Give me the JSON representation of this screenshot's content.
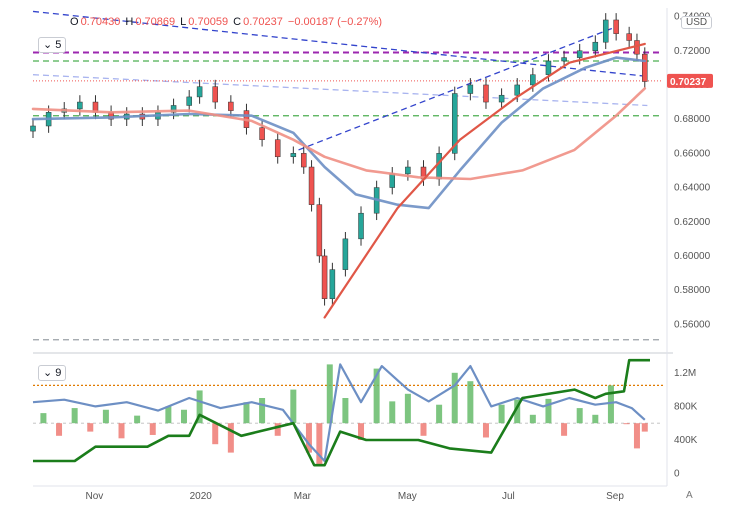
{
  "header": {
    "ohlc": [
      {
        "label": "O",
        "value": "0.70430"
      },
      {
        "label": "H",
        "value": "0.70869"
      },
      {
        "label": "L",
        "value": "0.70059"
      },
      {
        "label": "C",
        "value": "0.70237"
      }
    ],
    "change": "−0.00187 (−0.27%)",
    "currency": "USD",
    "price_pane_legend": "5",
    "volume_pane_legend": "9",
    "scale_mode": "A"
  },
  "colors": {
    "up": "#26a69a",
    "down": "#ef5350",
    "sma_fast": "#6d8fc4",
    "sma_slow": "#f08f84",
    "trend_red": "#e05747",
    "purple": "#9c27b0",
    "green_dash": "#4caf50",
    "blue_dash": "#3344cc",
    "green_line": "#1b7d1b",
    "orange_dot": "#e07a00"
  },
  "chart_data": [
    {
      "type": "line",
      "pane": "price",
      "ylim": [
        0.545,
        0.745
      ],
      "y_ticks": [
        0.74,
        0.72,
        0.7,
        0.68,
        0.66,
        0.64,
        0.62,
        0.6,
        0.58,
        0.56
      ],
      "y_tick_labels": [
        "0.74000",
        "0.72000",
        "0.70000",
        "0.68000",
        "0.66000",
        "0.64000",
        "0.62000",
        "0.60000",
        "0.58000",
        "0.56000"
      ],
      "last_price_label": "0.70237",
      "last_price": 0.70237,
      "x_months": [
        "Nov",
        "2020",
        "Mar",
        "May",
        "Jul",
        "Sep"
      ],
      "x_month_positions": [
        1.2,
        3.2,
        5.2,
        7.2,
        9.2,
        11.2
      ],
      "candles": [
        {
          "t": 0.0,
          "c": 0.676
        },
        {
          "t": 0.3,
          "c": 0.684
        },
        {
          "t": 0.6,
          "c": 0.686
        },
        {
          "t": 0.9,
          "c": 0.69
        },
        {
          "t": 1.2,
          "c": 0.684
        },
        {
          "t": 1.5,
          "c": 0.68
        },
        {
          "t": 1.8,
          "c": 0.683
        },
        {
          "t": 2.1,
          "c": 0.68
        },
        {
          "t": 2.4,
          "c": 0.684
        },
        {
          "t": 2.7,
          "c": 0.688
        },
        {
          "t": 3.0,
          "c": 0.693
        },
        {
          "t": 3.2,
          "c": 0.699
        },
        {
          "t": 3.5,
          "c": 0.69
        },
        {
          "t": 3.8,
          "c": 0.685
        },
        {
          "t": 4.1,
          "c": 0.675
        },
        {
          "t": 4.4,
          "c": 0.668
        },
        {
          "t": 4.7,
          "c": 0.658
        },
        {
          "t": 5.0,
          "c": 0.66
        },
        {
          "t": 5.2,
          "c": 0.652
        },
        {
          "t": 5.35,
          "c": 0.63
        },
        {
          "t": 5.5,
          "c": 0.6
        },
        {
          "t": 5.6,
          "c": 0.575
        },
        {
          "t": 5.75,
          "c": 0.592
        },
        {
          "t": 6.0,
          "c": 0.61
        },
        {
          "t": 6.3,
          "c": 0.625
        },
        {
          "t": 6.6,
          "c": 0.64
        },
        {
          "t": 6.9,
          "c": 0.648
        },
        {
          "t": 7.2,
          "c": 0.652
        },
        {
          "t": 7.5,
          "c": 0.645
        },
        {
          "t": 7.8,
          "c": 0.66
        },
        {
          "t": 8.1,
          "c": 0.695
        },
        {
          "t": 8.4,
          "c": 0.7
        },
        {
          "t": 8.7,
          "c": 0.69
        },
        {
          "t": 9.0,
          "c": 0.694
        },
        {
          "t": 9.3,
          "c": 0.7
        },
        {
          "t": 9.6,
          "c": 0.706
        },
        {
          "t": 9.9,
          "c": 0.714
        },
        {
          "t": 10.2,
          "c": 0.716
        },
        {
          "t": 10.5,
          "c": 0.72
        },
        {
          "t": 10.8,
          "c": 0.725
        },
        {
          "t": 11.0,
          "c": 0.738
        },
        {
          "t": 11.2,
          "c": 0.73
        },
        {
          "t": 11.45,
          "c": 0.726
        },
        {
          "t": 11.6,
          "c": 0.718
        },
        {
          "t": 11.75,
          "c": 0.702
        }
      ],
      "series": [
        {
          "key": "sma_fast",
          "values": [
            [
              0.0,
              0.68
            ],
            [
              1.5,
              0.681
            ],
            [
              3.0,
              0.683
            ],
            [
              4.2,
              0.682
            ],
            [
              5.0,
              0.672
            ],
            [
              5.6,
              0.652
            ],
            [
              6.2,
              0.636
            ],
            [
              7.0,
              0.63
            ],
            [
              7.6,
              0.628
            ],
            [
              8.2,
              0.65
            ],
            [
              9.0,
              0.678
            ],
            [
              9.8,
              0.698
            ],
            [
              10.6,
              0.71
            ],
            [
              11.2,
              0.716
            ],
            [
              11.75,
              0.714
            ]
          ]
        },
        {
          "key": "sma_slow",
          "values": [
            [
              0.0,
              0.686
            ],
            [
              1.5,
              0.684
            ],
            [
              3.0,
              0.685
            ],
            [
              4.2,
              0.679
            ],
            [
              5.0,
              0.668
            ],
            [
              5.6,
              0.658
            ],
            [
              6.4,
              0.65
            ],
            [
              7.4,
              0.646
            ],
            [
              8.4,
              0.645
            ],
            [
              9.4,
              0.65
            ],
            [
              10.4,
              0.662
            ],
            [
              11.2,
              0.682
            ],
            [
              11.75,
              0.698
            ]
          ]
        },
        {
          "key": "trend_red",
          "values": [
            [
              5.6,
              0.564
            ],
            [
              7.0,
              0.628
            ],
            [
              8.2,
              0.668
            ],
            [
              9.3,
              0.693
            ],
            [
              10.3,
              0.713
            ],
            [
              11.75,
              0.724
            ]
          ]
        }
      ],
      "levels": [
        {
          "key": "purple",
          "y": 0.719
        },
        {
          "key": "green_dash",
          "y": 0.714
        },
        {
          "key": "green_dash",
          "y": 0.682
        },
        {
          "key": "gray_dash",
          "y": 0.551
        }
      ],
      "trendlines": [
        {
          "key": "blue_dash",
          "points": [
            [
              0.0,
              0.743
            ],
            [
              11.8,
              0.705
            ]
          ]
        },
        {
          "key": "blue_light",
          "points": [
            [
              0.0,
              0.706
            ],
            [
              11.8,
              0.688
            ]
          ]
        },
        {
          "key": "blue_dash",
          "points": [
            [
              5.1,
              0.662
            ],
            [
              11.2,
              0.734
            ]
          ]
        }
      ]
    },
    {
      "type": "bar",
      "pane": "volume",
      "ylim": [
        -100,
        1400
      ],
      "y_ticks": [
        0,
        400,
        800,
        1200
      ],
      "y_tick_labels": [
        "0",
        "400K",
        "800K",
        "1.2M"
      ],
      "reference_level": 1050,
      "baseline": 600,
      "bars": [
        [
          0.2,
          720
        ],
        [
          0.5,
          450
        ],
        [
          0.8,
          780
        ],
        [
          1.1,
          500
        ],
        [
          1.4,
          760
        ],
        [
          1.7,
          420
        ],
        [
          2.0,
          690
        ],
        [
          2.3,
          460
        ],
        [
          2.6,
          800
        ],
        [
          2.9,
          760
        ],
        [
          3.2,
          990
        ],
        [
          3.5,
          350
        ],
        [
          3.8,
          250
        ],
        [
          4.1,
          850
        ],
        [
          4.4,
          900
        ],
        [
          4.7,
          450
        ],
        [
          5.0,
          1000
        ],
        [
          5.3,
          250
        ],
        [
          5.5,
          100
        ],
        [
          5.7,
          1300
        ],
        [
          6.0,
          900
        ],
        [
          6.3,
          400
        ],
        [
          6.6,
          1250
        ],
        [
          6.9,
          860
        ],
        [
          7.2,
          950
        ],
        [
          7.5,
          450
        ],
        [
          7.8,
          820
        ],
        [
          8.1,
          1200
        ],
        [
          8.4,
          1100
        ],
        [
          8.7,
          430
        ],
        [
          9.0,
          820
        ],
        [
          9.3,
          880
        ],
        [
          9.6,
          700
        ],
        [
          9.9,
          890
        ],
        [
          10.2,
          450
        ],
        [
          10.5,
          780
        ],
        [
          10.8,
          700
        ],
        [
          11.1,
          1050
        ],
        [
          11.4,
          590
        ],
        [
          11.6,
          300
        ],
        [
          11.75,
          500
        ]
      ],
      "series": [
        {
          "key": "sma_fast",
          "values": [
            [
              0.0,
              850
            ],
            [
              0.6,
              880
            ],
            [
              1.2,
              800
            ],
            [
              1.8,
              850
            ],
            [
              2.4,
              750
            ],
            [
              3.0,
              900
            ],
            [
              3.6,
              780
            ],
            [
              4.2,
              850
            ],
            [
              4.8,
              760
            ],
            [
              5.3,
              350
            ],
            [
              5.6,
              150
            ],
            [
              5.9,
              1300
            ],
            [
              6.3,
              850
            ],
            [
              6.7,
              1280
            ],
            [
              7.2,
              1000
            ],
            [
              7.6,
              860
            ],
            [
              8.1,
              1050
            ],
            [
              8.4,
              1280
            ],
            [
              8.8,
              800
            ],
            [
              9.3,
              900
            ],
            [
              9.8,
              800
            ],
            [
              10.3,
              900
            ],
            [
              10.8,
              820
            ],
            [
              11.2,
              850
            ],
            [
              11.5,
              780
            ],
            [
              11.75,
              640
            ]
          ]
        },
        {
          "key": "green_line",
          "values": [
            [
              0.0,
              150
            ],
            [
              0.8,
              150
            ],
            [
              1.2,
              320
            ],
            [
              2.2,
              320
            ],
            [
              2.6,
              450
            ],
            [
              3.0,
              450
            ],
            [
              3.2,
              700
            ],
            [
              4.0,
              450
            ],
            [
              5.0,
              600
            ],
            [
              5.4,
              100
            ],
            [
              5.6,
              100
            ],
            [
              5.9,
              500
            ],
            [
              6.4,
              400
            ],
            [
              7.4,
              400
            ],
            [
              8.0,
              300
            ],
            [
              8.8,
              250
            ],
            [
              9.4,
              900
            ],
            [
              10.4,
              1000
            ],
            [
              10.8,
              900
            ],
            [
              11.0,
              950
            ],
            [
              11.35,
              980
            ],
            [
              11.45,
              1350
            ],
            [
              11.85,
              1350
            ]
          ]
        }
      ]
    }
  ]
}
